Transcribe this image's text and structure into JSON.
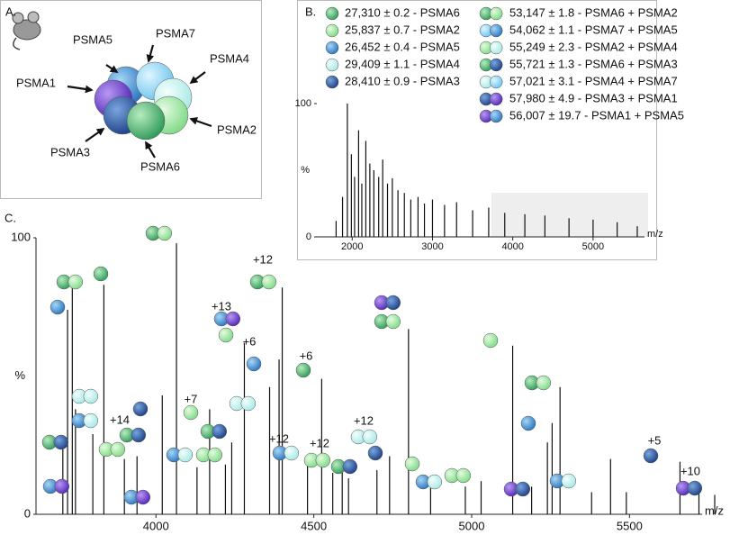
{
  "panel_a": {
    "label": "A.",
    "subunits": [
      "PSMA5",
      "PSMA7",
      "PSMA4",
      "PSMA1",
      "PSMA2",
      "PSMA3",
      "PSMA6"
    ]
  },
  "panel_b": {
    "label": "B.",
    "legend": [
      "27,310 ± 0.2 - PSMA6",
      "25,837 ± 0.7 - PSMA2",
      "26,452 ± 0.4 - PSMA5",
      "29,409 ± 1.1 - PSMA4",
      "28,410 ± 0.9 - PSMA3",
      "53,147 ± 1.8 - PSMA6 + PSMA2",
      "54,062 ± 1.1 - PSMA7 + PSMA5",
      "55,249 ± 2.3 - PSMA2 + PSMA4",
      "55,721 ± 1.3 - PSMA6 + PSMA3",
      "57,021 ± 3.1 - PSMA4 + PSMA7",
      "57,980 ± 4.9 - PSMA3 + PSMA1",
      "56,007 ± 19.7 - PSMA1 + PSMA5"
    ],
    "chart": {
      "type": "stick",
      "xlabel": "m/z",
      "ylabel": "%",
      "xlim": [
        1560,
        5640
      ],
      "ylim": [
        0,
        100
      ],
      "xticks": [
        2000,
        3000,
        4000,
        5000
      ],
      "yticks": [
        0,
        100
      ],
      "x": [
        1800,
        1880,
        1940,
        1990,
        2030,
        2080,
        2120,
        2170,
        2220,
        2270,
        2330,
        2380,
        2440,
        2500,
        2570,
        2650,
        2730,
        2820,
        2900,
        3000,
        3150,
        3300,
        3500,
        3700,
        3900,
        4150,
        4400,
        4700,
        5000,
        5300,
        5550
      ],
      "y": [
        12,
        30,
        100,
        62,
        45,
        80,
        40,
        72,
        55,
        50,
        45,
        58,
        40,
        44,
        35,
        33,
        28,
        30,
        25,
        28,
        24,
        26,
        20,
        22,
        18,
        17,
        16,
        14,
        13,
        11,
        8
      ]
    }
  },
  "panel_c_label": "C.",
  "chart_data": {
    "type": "stick",
    "xlabel": "m/z",
    "ylabel": "%",
    "xlim": [
      3620,
      5730
    ],
    "ylim": [
      0,
      100
    ],
    "xticks": [
      4000,
      4500,
      5000,
      5500
    ],
    "yticks": [
      0,
      100
    ],
    "x": [
      3705,
      3720,
      3735,
      3745,
      3800,
      3835,
      3900,
      3940,
      4020,
      4065,
      4130,
      4170,
      4220,
      4240,
      4280,
      4360,
      4390,
      4400,
      4480,
      4525,
      4560,
      4590,
      4610,
      4700,
      4740,
      4800,
      4870,
      4980,
      5030,
      5130,
      5190,
      5240,
      5255,
      5280,
      5380,
      5440,
      5490,
      5660,
      5720,
      5770
    ],
    "y": [
      25,
      74,
      82,
      38,
      29,
      83,
      20,
      21,
      43,
      98,
      17,
      38,
      18,
      26,
      62,
      46,
      56,
      82,
      20,
      49,
      15,
      17,
      13,
      16,
      21,
      67,
      14,
      10,
      12,
      61,
      10,
      26,
      33,
      46,
      8,
      20,
      8,
      19,
      11,
      7
    ],
    "charge_labels": [
      "+14",
      "+7",
      "+13",
      "+6",
      "+12",
      "+6",
      "+12",
      "+12",
      "+12",
      "+5",
      "+10"
    ]
  }
}
